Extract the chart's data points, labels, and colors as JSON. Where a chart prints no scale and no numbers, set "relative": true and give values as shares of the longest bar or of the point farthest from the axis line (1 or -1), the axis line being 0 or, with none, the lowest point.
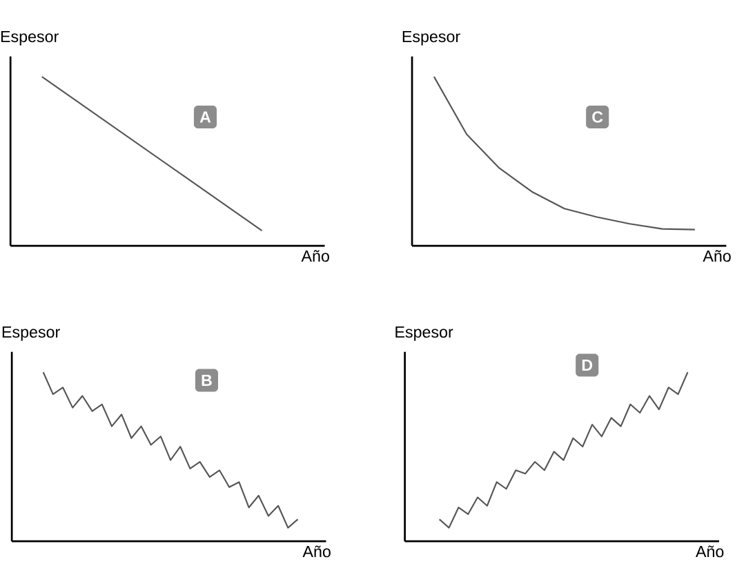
{
  "chart_data": [
    {
      "type": "line",
      "title": "A",
      "xlabel": "Año",
      "ylabel": "Espesor",
      "relative": true,
      "categories": [
        null,
        null
      ],
      "series": [
        {
          "color": "#555555",
          "values": [
            1.0,
            0.09
          ]
        }
      ]
    },
    {
      "type": "line",
      "title": "C",
      "xlabel": "Año",
      "ylabel": "Espesor",
      "relative": true,
      "categories": [
        null,
        null,
        null,
        null,
        null,
        null,
        null,
        null,
        null
      ],
      "series": [
        {
          "color": "#555555",
          "values": [
            1.0,
            0.66,
            0.46,
            0.32,
            0.22,
            0.17,
            0.13,
            0.1,
            0.096
          ]
        }
      ]
    },
    {
      "type": "line",
      "title": "B",
      "xlabel": "Año",
      "ylabel": "Espesor",
      "relative": true,
      "categories": [
        null,
        null,
        null,
        null,
        null,
        null,
        null,
        null,
        null,
        null,
        null,
        null,
        null,
        null,
        null,
        null,
        null,
        null,
        null,
        null,
        null,
        null,
        null,
        null,
        null,
        null,
        null
      ],
      "series": [
        {
          "color": "#555555",
          "values": [
            1.0,
            0.87,
            0.91,
            0.79,
            0.86,
            0.77,
            0.81,
            0.68,
            0.75,
            0.61,
            0.68,
            0.57,
            0.62,
            0.48,
            0.56,
            0.43,
            0.47,
            0.38,
            0.42,
            0.32,
            0.35,
            0.2,
            0.27,
            0.15,
            0.21,
            0.08,
            0.13
          ]
        }
      ]
    },
    {
      "type": "line",
      "title": "D",
      "xlabel": "Año",
      "ylabel": "Espesor",
      "relative": true,
      "categories": [
        null,
        null,
        null,
        null,
        null,
        null,
        null,
        null,
        null,
        null,
        null,
        null,
        null,
        null,
        null,
        null,
        null,
        null,
        null,
        null,
        null,
        null,
        null,
        null,
        null,
        null,
        null
      ],
      "series": [
        {
          "color": "#555555",
          "values": [
            0.13,
            0.08,
            0.2,
            0.16,
            0.26,
            0.21,
            0.35,
            0.31,
            0.42,
            0.4,
            0.47,
            0.42,
            0.53,
            0.48,
            0.61,
            0.56,
            0.69,
            0.62,
            0.73,
            0.68,
            0.81,
            0.76,
            0.86,
            0.78,
            0.91,
            0.87,
            1.0
          ]
        }
      ]
    }
  ]
}
